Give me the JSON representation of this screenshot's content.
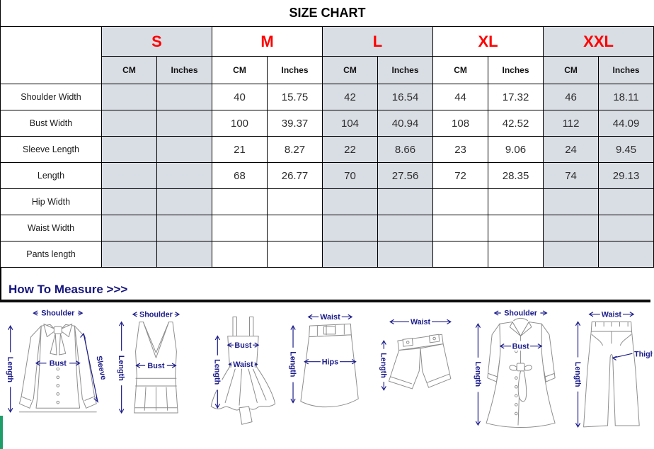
{
  "page": {
    "title": "SIZE CHART"
  },
  "table": {
    "sizes": [
      {
        "label": "S",
        "shaded": true
      },
      {
        "label": "M",
        "shaded": false
      },
      {
        "label": "L",
        "shaded": true
      },
      {
        "label": "XL",
        "shaded": false
      },
      {
        "label": "XXL",
        "shaded": true
      }
    ],
    "unit_labels": [
      "CM",
      "Inches"
    ],
    "rows": [
      {
        "label": "Shoulder Width",
        "values": [
          "",
          "",
          "40",
          "15.75",
          "42",
          "16.54",
          "44",
          "17.32",
          "46",
          "18.11"
        ]
      },
      {
        "label": "Bust Width",
        "values": [
          "",
          "",
          "100",
          "39.37",
          "104",
          "40.94",
          "108",
          "42.52",
          "112",
          "44.09"
        ]
      },
      {
        "label": "Sleeve Length",
        "values": [
          "",
          "",
          "21",
          "8.27",
          "22",
          "8.66",
          "23",
          "9.06",
          "24",
          "9.45"
        ]
      },
      {
        "label": "Length",
        "values": [
          "",
          "",
          "68",
          "26.77",
          "70",
          "27.56",
          "72",
          "28.35",
          "74",
          "29.13"
        ]
      },
      {
        "label": "Hip Width",
        "values": [
          "",
          "",
          "",
          "",
          "",
          "",
          "",
          "",
          "",
          ""
        ]
      },
      {
        "label": "Waist Width",
        "values": [
          "",
          "",
          "",
          "",
          "",
          "",
          "",
          "",
          "",
          ""
        ]
      },
      {
        "label": "Pants length",
        "values": [
          "",
          "",
          "",
          "",
          "",
          "",
          "",
          "",
          "",
          ""
        ]
      }
    ]
  },
  "measure": {
    "heading": "How To Measure >>>",
    "figures": [
      {
        "name": "blouse",
        "labels": {
          "shoulder": "Shoulder",
          "length": "Length",
          "bust": "Bust",
          "sleeve": "Sleeve"
        }
      },
      {
        "name": "tank-top",
        "labels": {
          "shoulder": "Shoulder",
          "length": "Length",
          "bust": "Bust"
        }
      },
      {
        "name": "dress",
        "labels": {
          "length": "Length",
          "bust": "Bust",
          "waist": "Waist"
        }
      },
      {
        "name": "skirt",
        "labels": {
          "waist": "Waist",
          "length": "Length",
          "hips": "Hips"
        }
      },
      {
        "name": "shorts",
        "labels": {
          "waist": "Waist",
          "length": "Length"
        }
      },
      {
        "name": "coat",
        "labels": {
          "shoulder": "Shoulder",
          "length": "Length",
          "bust": "Bust"
        }
      },
      {
        "name": "pants",
        "labels": {
          "waist": "Waist",
          "length": "Length",
          "thigh": "Thigh"
        }
      }
    ]
  },
  "colors": {
    "shaded_cell": "#d9dde4",
    "size_label_red": "#ff0000",
    "measure_navy": "#1b1b8a",
    "left_edge_accent": "#1f9e6a"
  }
}
